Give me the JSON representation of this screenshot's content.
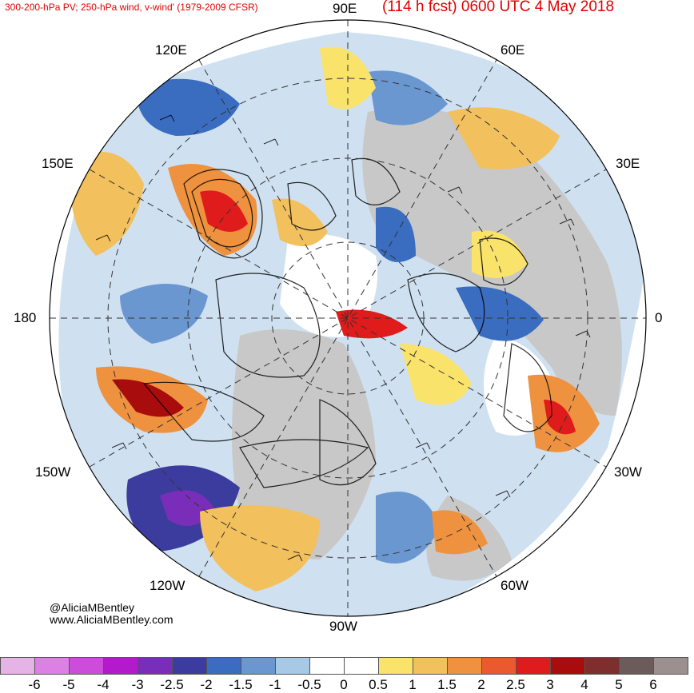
{
  "header": {
    "left_title": "300-200-hPa PV; 250-hPa wind, v-wind' (1979-2009 CFSR)",
    "right_title": "(114 h fcst) 0600 UTC 4 May 2018"
  },
  "longitude_labels": {
    "n90e": "90E",
    "n60e": "60E",
    "n120e": "120E",
    "n150e": "150E",
    "n30e": "30E",
    "n180": "180",
    "n0": "0",
    "n150w": "150W",
    "n30w": "30W",
    "n120w": "120W",
    "n60w": "60W",
    "n90w": "90W"
  },
  "credit": {
    "handle": "@AliciaMBentley",
    "site": "www.AliciaMBentley.com"
  },
  "colorbar": {
    "colors": [
      "#e6b3e6",
      "#dd80e6",
      "#cc4dd9",
      "#b31acc",
      "#7a2db8",
      "#3c3c9e",
      "#3a6cbf",
      "#6b97d1",
      "#a8c9e6",
      "#ffffff",
      "#ffffff",
      "#f9e36a",
      "#f2c05c",
      "#ee9240",
      "#ea5a2e",
      "#e01b1b",
      "#a80c0c",
      "#7f2e2e",
      "#6b5b5b",
      "#9c8f8f"
    ],
    "ticks": [
      "-6",
      "-5",
      "-4",
      "-3",
      "-2.5",
      "-2",
      "-1.5",
      "-1",
      "-0.5",
      "0",
      "0.5",
      "1",
      "1.5",
      "2",
      "2.5",
      "3",
      "4",
      "5",
      "6"
    ]
  },
  "map_colors": {
    "land": "#c8c8c8",
    "blue_light": "#a8c9e6",
    "blue_mid": "#6b97d1",
    "blue_dark": "#3a6cbf",
    "purple": "#7a2db8",
    "yellow": "#f9e36a",
    "orange": "#ee9240",
    "red": "#e01b1b",
    "dark_red": "#a80c0c"
  }
}
